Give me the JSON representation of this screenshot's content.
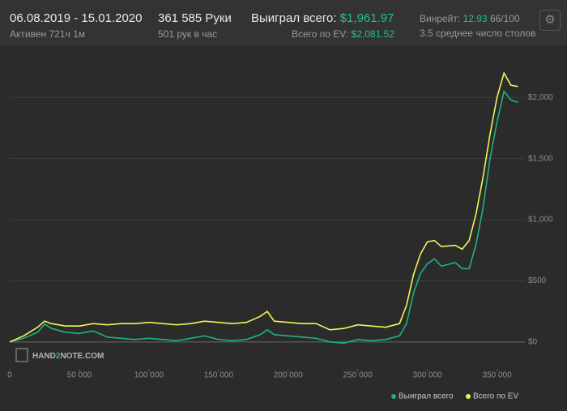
{
  "header": {
    "dates": "06.08.2019 - 15.01.2020",
    "active": "Активен 721ч 1м",
    "hands": "361 585 Руки",
    "hands_per_hour": "501 рук в час",
    "won_label": "Выиграл всего:",
    "won_value": "$1,961.97",
    "ev_label": "Всего по EV:",
    "ev_value": "$2,081.52",
    "winrate_label": "Винрейт:",
    "winrate_value": "12.93",
    "winrate_unit": "66/100",
    "tables": "3.5 среднее число столов"
  },
  "watermark": {
    "part1": "HAND",
    "part2": "2",
    "part3": "NOTE.COM"
  },
  "chart_data": {
    "type": "line",
    "x": [
      0,
      10000,
      20000,
      25000,
      30000,
      40000,
      50000,
      60000,
      70000,
      80000,
      90000,
      100000,
      110000,
      120000,
      130000,
      140000,
      150000,
      160000,
      170000,
      180000,
      185000,
      190000,
      200000,
      210000,
      220000,
      230000,
      240000,
      250000,
      260000,
      270000,
      280000,
      285000,
      290000,
      295000,
      300000,
      305000,
      310000,
      320000,
      325000,
      330000,
      335000,
      340000,
      345000,
      350000,
      355000,
      360000,
      365000
    ],
    "series": [
      {
        "name": "Выиграл всего",
        "color": "#1db37f",
        "values": [
          0,
          30,
          80,
          146,
          110,
          80,
          70,
          90,
          40,
          30,
          20,
          30,
          20,
          10,
          30,
          50,
          20,
          10,
          20,
          60,
          100,
          60,
          50,
          40,
          30,
          0,
          -10,
          20,
          10,
          20,
          50,
          150,
          400,
          560,
          640,
          680,
          620,
          650,
          600,
          600,
          800,
          1100,
          1500,
          1800,
          2050,
          1980,
          1960
        ]
      },
      {
        "name": "Всего по EV",
        "color": "#f2f25a",
        "values": [
          0,
          50,
          120,
          170,
          150,
          130,
          130,
          150,
          140,
          150,
          150,
          160,
          150,
          140,
          150,
          170,
          160,
          150,
          160,
          210,
          250,
          170,
          160,
          150,
          150,
          100,
          110,
          140,
          130,
          120,
          150,
          300,
          550,
          720,
          820,
          830,
          780,
          790,
          760,
          830,
          1050,
          1350,
          1700,
          2000,
          2200,
          2100,
          2090
        ]
      }
    ],
    "xlim": [
      0,
      370000
    ],
    "ylim": [
      -220,
      2400
    ],
    "xticks": [
      0,
      {
        "value": 50000,
        "label": "50 000"
      },
      {
        "value": 100000,
        "label": "100 000"
      },
      {
        "value": 150000,
        "label": "150 000"
      },
      {
        "value": 200000,
        "label": "200 000"
      },
      {
        "value": 250000,
        "label": "250 000"
      },
      {
        "value": 300000,
        "label": "300 000"
      },
      {
        "value": 350000,
        "label": "350 000"
      }
    ],
    "yticks": [
      {
        "value": 0,
        "label": "$0"
      },
      {
        "value": 500,
        "label": "$500"
      },
      {
        "value": 1000,
        "label": "$1,000"
      },
      {
        "value": 1500,
        "label": "$1,500"
      },
      {
        "value": 2000,
        "label": "$2,000"
      }
    ],
    "grid": true
  }
}
